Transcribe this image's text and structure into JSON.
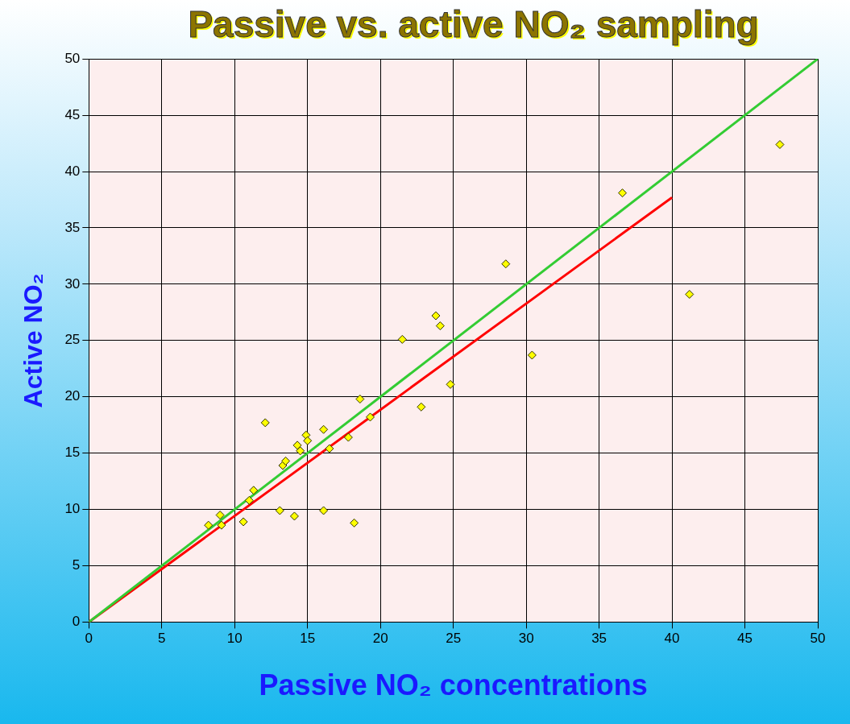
{
  "chart_data": {
    "type": "scatter",
    "title": "Passive vs. active NO₂ sampling",
    "xlabel": "Passive NO₂ concentrations",
    "ylabel": "Active NO₂",
    "xlim": [
      0,
      50
    ],
    "ylim": [
      0,
      50
    ],
    "xticks": [
      0,
      5,
      10,
      15,
      20,
      25,
      30,
      35,
      40,
      45,
      50
    ],
    "yticks": [
      0,
      5,
      10,
      15,
      20,
      25,
      30,
      35,
      40,
      45,
      50
    ],
    "grid": true,
    "marker": "diamond",
    "series": [
      {
        "color": "#ffff00",
        "x": [
          8.2,
          9,
          9.1,
          10.6,
          11,
          11.3,
          12.1,
          13.1,
          13.3,
          13.5,
          14.1,
          14.3,
          14.5,
          14.9,
          15,
          16.1,
          16.1,
          16.5,
          17.8,
          18.2,
          18.6,
          19.3,
          21.5,
          22.8,
          23.8,
          24.1,
          24.8,
          28.6,
          30.4,
          36.6,
          41.2,
          47.4
        ],
        "values": [
          8.6,
          9.5,
          8.6,
          8.9,
          10.8,
          11.7,
          17.7,
          9.9,
          13.9,
          14.3,
          9.4,
          15.7,
          15.2,
          16.6,
          16.1,
          17.1,
          9.9,
          15.4,
          16.4,
          8.8,
          19.8,
          18.2,
          25.1,
          19.1,
          27.2,
          26.3,
          21.1,
          31.8,
          23.7,
          38.1,
          29.1,
          42.4
        ]
      },
      {
        "type": "line",
        "color": "#33cc33",
        "x": [
          0,
          50
        ],
        "values": [
          0,
          50
        ],
        "marker": "none"
      },
      {
        "type": "line",
        "color": "#ff0000",
        "x": [
          0,
          40
        ],
        "values": [
          0,
          37.7
        ],
        "marker": "none"
      }
    ]
  }
}
